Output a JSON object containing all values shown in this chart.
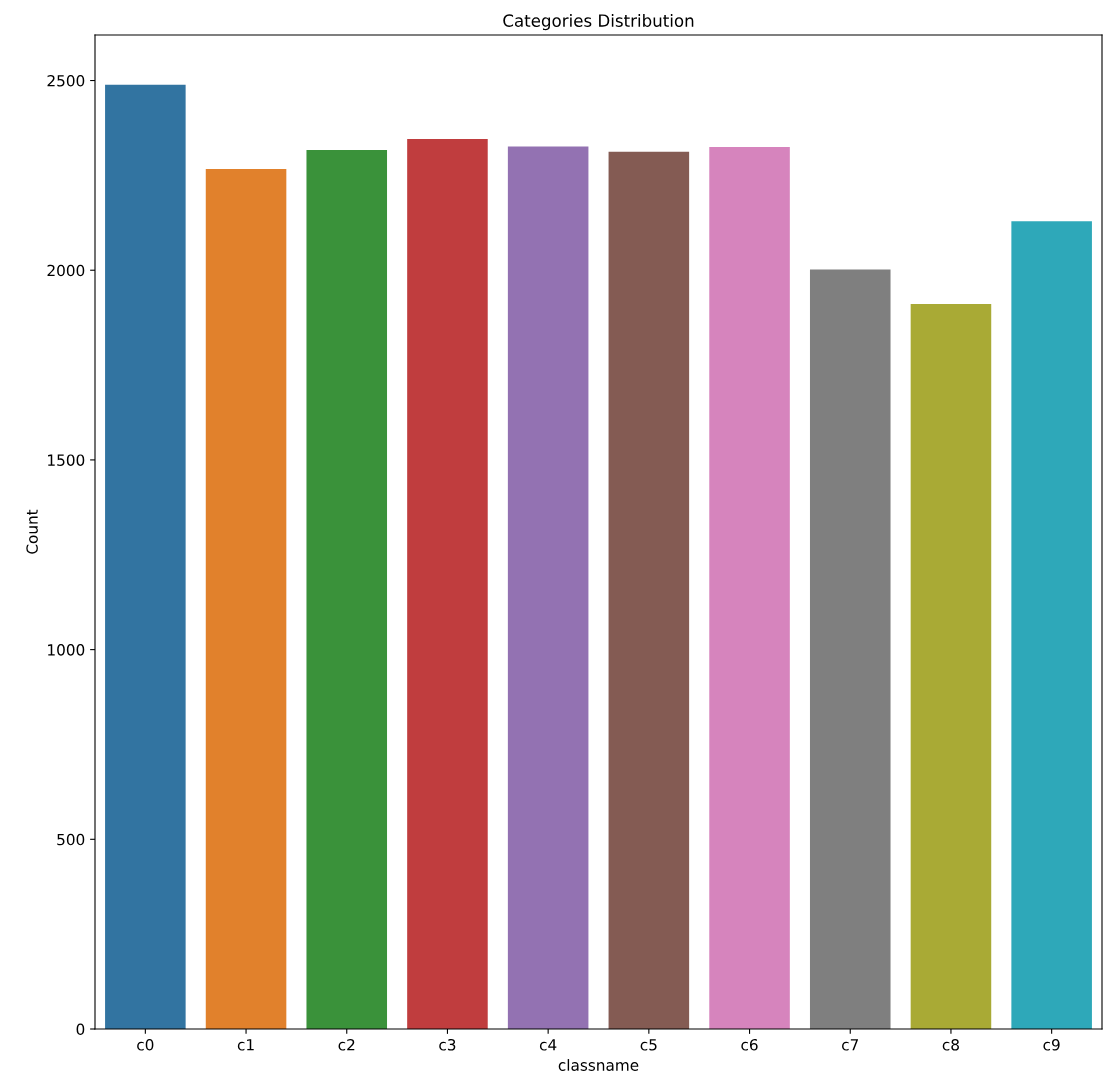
{
  "chart_data": {
    "type": "bar",
    "title": "Categories Distribution",
    "xlabel": "classname",
    "ylabel": "Count",
    "categories": [
      "c0",
      "c1",
      "c2",
      "c3",
      "c4",
      "c5",
      "c6",
      "c7",
      "c8",
      "c9"
    ],
    "values": [
      2489,
      2267,
      2317,
      2346,
      2326,
      2312,
      2325,
      2002,
      1911,
      2129
    ],
    "colors": [
      "#3274a1",
      "#e1812c",
      "#3a923a",
      "#c03d3e",
      "#9372b2",
      "#845b53",
      "#d684bd",
      "#7f7f7f",
      "#a9aa35",
      "#2ea8b9"
    ],
    "ylim": [
      0,
      2620
    ],
    "yticks": [
      0,
      500,
      1000,
      1500,
      2000,
      2500
    ],
    "grid": false,
    "legend": false
  }
}
